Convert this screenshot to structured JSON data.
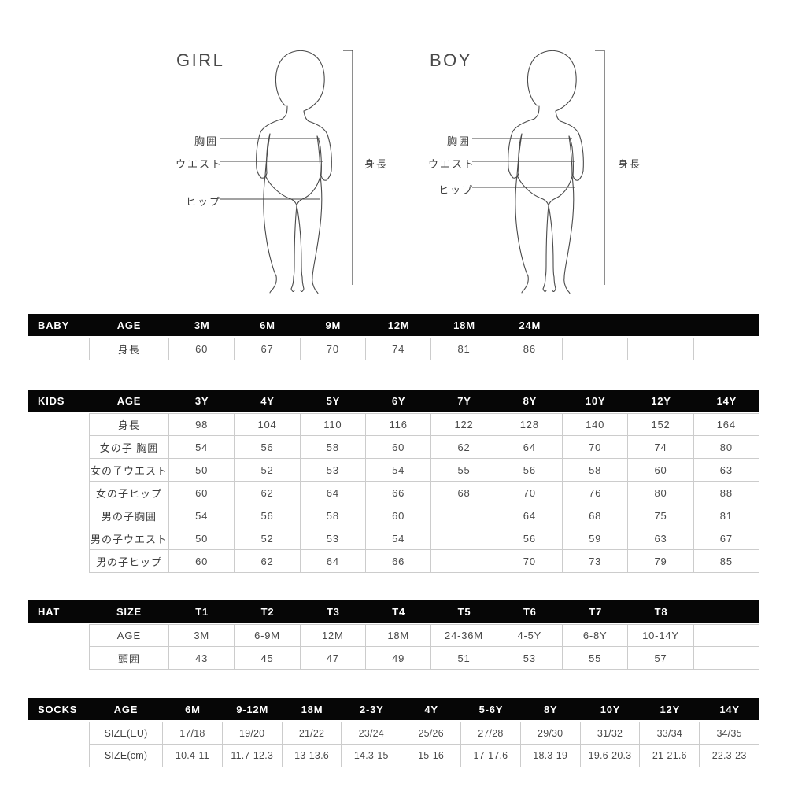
{
  "diagram": {
    "figures": [
      {
        "id": "girl",
        "title": "GIRL",
        "chest_label": "胸囲",
        "waist_label": "ウエスト",
        "hip_label": "ヒップ",
        "height_label": "身長"
      },
      {
        "id": "boy",
        "title": "BOY",
        "chest_label": "胸囲",
        "waist_label": "ウエスト",
        "hip_label": "ヒップ",
        "height_label": "身長"
      }
    ]
  },
  "tables": [
    {
      "id": "baby",
      "category": "BABY",
      "header_label": "AGE",
      "columns": [
        "3M",
        "6M",
        "9M",
        "12M",
        "18M",
        "24M",
        "",
        "",
        ""
      ],
      "rows": [
        {
          "label": "身長",
          "values": [
            "60",
            "67",
            "70",
            "74",
            "81",
            "86",
            "",
            "",
            ""
          ]
        }
      ]
    },
    {
      "id": "kids",
      "category": "KIDS",
      "header_label": "AGE",
      "columns": [
        "3Y",
        "4Y",
        "5Y",
        "6Y",
        "7Y",
        "8Y",
        "10Y",
        "12Y",
        "14Y"
      ],
      "rows": [
        {
          "label": "身長",
          "values": [
            "98",
            "104",
            "110",
            "116",
            "122",
            "128",
            "140",
            "152",
            "164"
          ]
        },
        {
          "label": "女の子 胸囲",
          "values": [
            "54",
            "56",
            "58",
            "60",
            "62",
            "64",
            "70",
            "74",
            "80"
          ]
        },
        {
          "label": "女の子ウエスト",
          "values": [
            "50",
            "52",
            "53",
            "54",
            "55",
            "56",
            "58",
            "60",
            "63"
          ]
        },
        {
          "label": "女の子ヒップ",
          "values": [
            "60",
            "62",
            "64",
            "66",
            "68",
            "70",
            "76",
            "80",
            "88"
          ]
        },
        {
          "label": "男の子胸囲",
          "values": [
            "54",
            "56",
            "58",
            "60",
            "",
            "64",
            "68",
            "75",
            "81"
          ]
        },
        {
          "label": "男の子ウエスト",
          "values": [
            "50",
            "52",
            "53",
            "54",
            "",
            "56",
            "59",
            "63",
            "67"
          ]
        },
        {
          "label": "男の子ヒップ",
          "values": [
            "60",
            "62",
            "64",
            "66",
            "",
            "70",
            "73",
            "79",
            "85"
          ]
        }
      ]
    },
    {
      "id": "hat",
      "category": "HAT",
      "header_label": "SIZE",
      "columns": [
        "T1",
        "T2",
        "T3",
        "T4",
        "T5",
        "T6",
        "T7",
        "T8",
        ""
      ],
      "rows": [
        {
          "label": "AGE",
          "values": [
            "3M",
            "6-9M",
            "12M",
            "18M",
            "24-36M",
            "4-5Y",
            "6-8Y",
            "10-14Y",
            ""
          ]
        },
        {
          "label": "頭囲",
          "values": [
            "43",
            "45",
            "47",
            "49",
            "51",
            "53",
            "55",
            "57",
            ""
          ]
        }
      ]
    },
    {
      "id": "socks",
      "category": "SOCKS",
      "header_label": "AGE",
      "columns": [
        "6M",
        "9-12M",
        "18M",
        "2-3Y",
        "4Y",
        "5-6Y",
        "8Y",
        "10Y",
        "12Y",
        "14Y"
      ],
      "rows": [
        {
          "label": "SIZE(EU)",
          "values": [
            "17/18",
            "19/20",
            "21/22",
            "23/24",
            "25/26",
            "27/28",
            "29/30",
            "31/32",
            "33/34",
            "34/35"
          ]
        },
        {
          "label": "SIZE(cm)",
          "values": [
            "10.4-11",
            "11.7-12.3",
            "13-13.6",
            "14.3-15",
            "15-16",
            "17-17.6",
            "18.3-19",
            "19.6-20.3",
            "21-21.6",
            "22.3-23"
          ]
        }
      ]
    }
  ],
  "colors": {
    "header_bg": "#060606",
    "header_text": "#ffffff",
    "cell_border": "#cccccc",
    "cell_text": "#4a4a4a",
    "figure_stroke": "#4a4a4a"
  }
}
